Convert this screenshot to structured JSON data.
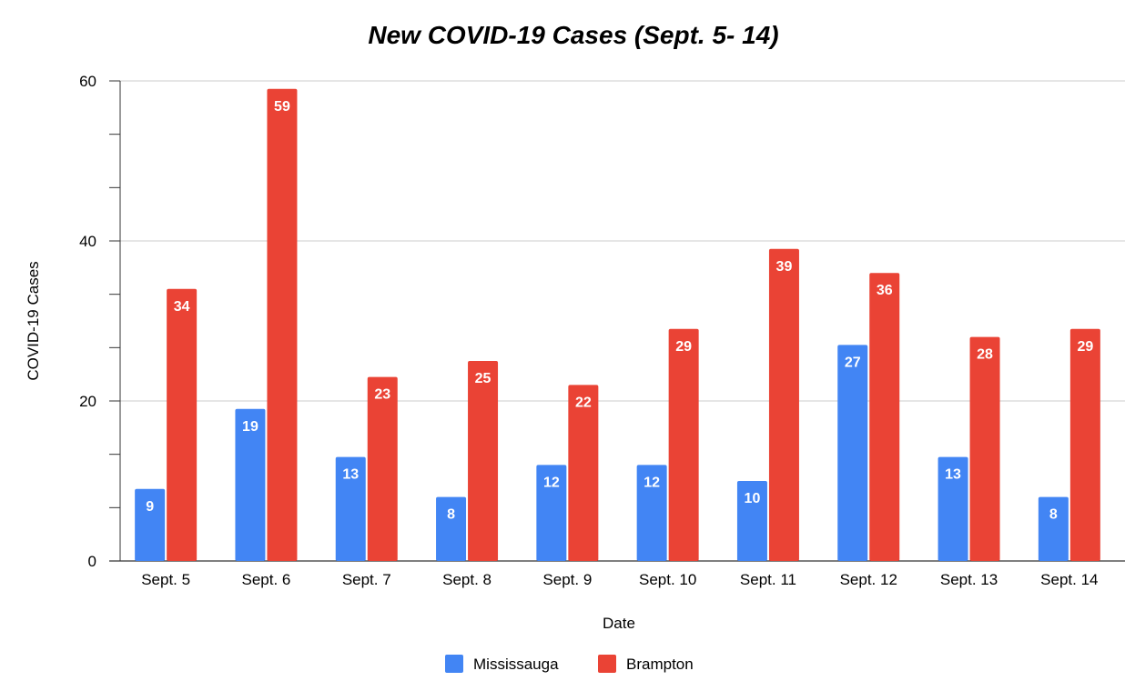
{
  "chart_data": {
    "type": "bar",
    "title": "New COVID-19 Cases (Sept. 5- 14)",
    "xlabel": "Date",
    "ylabel": "COVID-19 Cases",
    "ylim": [
      0,
      60
    ],
    "yticks": [
      0,
      20,
      40,
      60
    ],
    "grid": true,
    "legend_position": "bottom",
    "categories": [
      "Sept. 5",
      "Sept. 6",
      "Sept. 7",
      "Sept. 8",
      "Sept. 9",
      "Sept. 10",
      "Sept. 11",
      "Sept. 12",
      "Sept. 13",
      "Sept. 14"
    ],
    "series": [
      {
        "name": "Mississauga",
        "color": "#4285f4",
        "values": [
          9,
          19,
          13,
          8,
          12,
          12,
          10,
          27,
          13,
          8
        ]
      },
      {
        "name": "Brampton",
        "color": "#ea4335",
        "values": [
          34,
          59,
          23,
          25,
          22,
          29,
          39,
          36,
          28,
          29
        ]
      }
    ]
  }
}
